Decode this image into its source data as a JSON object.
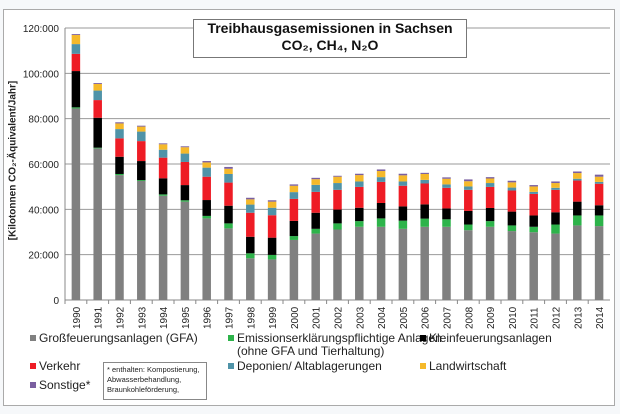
{
  "chart_data": {
    "type": "bar",
    "stacked": true,
    "title": "Treibhausgasemissionen in Sachsen",
    "subtitle": "CO₂, CH₄, N₂O",
    "ylabel": "[Kilotonnen CO₂-Äquivalent/Jahr]",
    "xlabel": "",
    "ylim": [
      0,
      120000
    ],
    "yticks": [
      "0",
      "20:000",
      "40:000",
      "60:000",
      "80:000",
      "100:000",
      "120:000"
    ],
    "ytick_values": [
      0,
      20000,
      40000,
      60000,
      80000,
      100000,
      120000
    ],
    "grid": true,
    "legend_placement": "bottom",
    "categories": [
      "1990",
      "1991",
      "1992",
      "1993",
      "1994",
      "1995",
      "1996",
      "1997",
      "1998",
      "1999",
      "2000",
      "2001",
      "2002",
      "2003",
      "2004",
      "2005",
      "2006",
      "2007",
      "2008",
      "2009",
      "2010",
      "2011",
      "2012",
      "2013",
      "2014"
    ],
    "series": [
      {
        "name": "Großfeuerungsanlagen (GFA)",
        "color": "#808080",
        "values": [
          84500,
          66900,
          55100,
          52500,
          46000,
          43400,
          36000,
          31600,
          18400,
          17900,
          26500,
          29300,
          31100,
          32300,
          32300,
          31400,
          32300,
          32300,
          30800,
          32300,
          30400,
          29900,
          29300,
          32900,
          32600
        ]
      },
      {
        "name": "Emissionserklärungspflichtige Anlagen",
        "name_line2": "(ohne GFA und Tierhaltung)",
        "color": "#2db34a",
        "values": [
          500,
          300,
          500,
          400,
          600,
          600,
          1100,
          2200,
          2200,
          2000,
          1700,
          2100,
          2700,
          2500,
          3700,
          3600,
          3600,
          3300,
          2500,
          2500,
          2500,
          2400,
          4000,
          4400,
          4700
        ]
      },
      {
        "name": "Kleinfeuerungsanlagen",
        "color": "#000000",
        "values": [
          16000,
          13200,
          7600,
          8400,
          7100,
          6700,
          7000,
          7800,
          7300,
          7600,
          6700,
          7100,
          6100,
          5900,
          6800,
          6300,
          6300,
          4800,
          6000,
          5800,
          6100,
          5000,
          5400,
          6100,
          4500
        ]
      },
      {
        "name": "Verkehr",
        "color": "#ee1c25",
        "values": [
          7600,
          7800,
          8100,
          8800,
          9100,
          10200,
          10300,
          10200,
          10600,
          9900,
          9700,
          9200,
          8700,
          9200,
          9300,
          9100,
          9200,
          9100,
          9300,
          9300,
          9300,
          9500,
          9900,
          9300,
          9500
        ]
      },
      {
        "name": "Deponien/ Altablagerungen",
        "color": "#4f93a8",
        "values": [
          4300,
          4200,
          4100,
          4200,
          3500,
          3700,
          4000,
          3800,
          3600,
          3300,
          3000,
          3100,
          3000,
          2400,
          2100,
          1900,
          1600,
          1500,
          1500,
          1700,
          1300,
          900,
          900,
          800,
          800
        ]
      },
      {
        "name": "Landwirtschaft",
        "color": "#f5b92a",
        "values": [
          4000,
          2900,
          2500,
          2200,
          2400,
          2800,
          2300,
          2300,
          2300,
          2700,
          2800,
          2500,
          2800,
          2800,
          2700,
          2700,
          2600,
          2500,
          2300,
          2000,
          2300,
          2400,
          2100,
          2500,
          2300
        ]
      },
      {
        "name": "Sonstige*",
        "color": "#7a5fa0",
        "values": [
          400,
          400,
          500,
          400,
          400,
          400,
          600,
          800,
          700,
          600,
          600,
          600,
          400,
          600,
          700,
          700,
          500,
          600,
          800,
          600,
          700,
          600,
          700,
          700,
          900
        ]
      }
    ],
    "footnote": [
      "* enthalten: Kompostierung,",
      "Abwasserbehandlung,",
      "Braunkohleförderung,"
    ]
  }
}
